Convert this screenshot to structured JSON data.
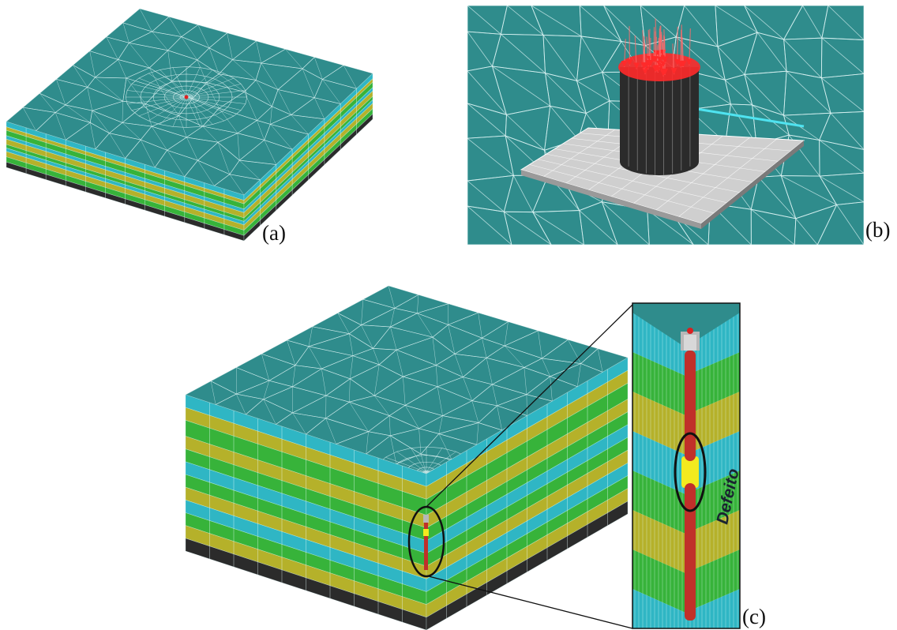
{
  "figure": {
    "panels": [
      {
        "id": "a",
        "label": "(a)",
        "content": "layered-block-with-refined-mesh"
      },
      {
        "id": "b",
        "label": "(b)",
        "content": "pile-on-plate-with-load-arrows"
      },
      {
        "id": "c",
        "label": "(c)",
        "content": "layered-block-with-pile-and-zoom-inset"
      }
    ],
    "inset_annotation": "Defeito"
  },
  "colors": {
    "top_surface": "#2f8c8c",
    "mesh_line": "#d9f2f2",
    "layer_cyan": "#2fb6c4",
    "layer_green": "#37b33a",
    "layer_yellow": "#b5b12a",
    "base_layer": "#2b2b2b",
    "pile": "#c0302a",
    "pile_cap": "#b8b8b8",
    "defect": "#f2ea1f",
    "load_arrows": "#ff2a2a",
    "plate": "#cfcfcf",
    "pile_body_b": "#2b2b2b"
  }
}
